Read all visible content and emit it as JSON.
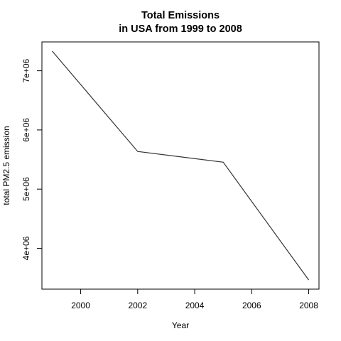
{
  "chart_data": {
    "type": "line",
    "title_lines": [
      "Total Emissions",
      "in USA from 1999 to 2008"
    ],
    "xlabel": "Year",
    "ylabel": "total PM2.5 emission",
    "x": [
      1999,
      2002,
      2005,
      2008
    ],
    "series": [
      {
        "values": [
          7332967,
          5635780,
          5454703,
          3464206
        ]
      }
    ],
    "x_ticks": [
      2000,
      2002,
      2004,
      2006,
      2008
    ],
    "x_tick_labels": [
      "2000",
      "2002",
      "2004",
      "2006",
      "2008"
    ],
    "y_ticks": [
      4000000,
      5000000,
      6000000,
      7000000
    ],
    "y_tick_labels": [
      "4e+06",
      "5e+06",
      "6e+06",
      "7e+06"
    ],
    "xlim": [
      1998.64,
      2008.36
    ],
    "ylim": [
      3309416,
      7487757
    ],
    "grid": false,
    "legend": "none",
    "line_color": "#333333"
  }
}
